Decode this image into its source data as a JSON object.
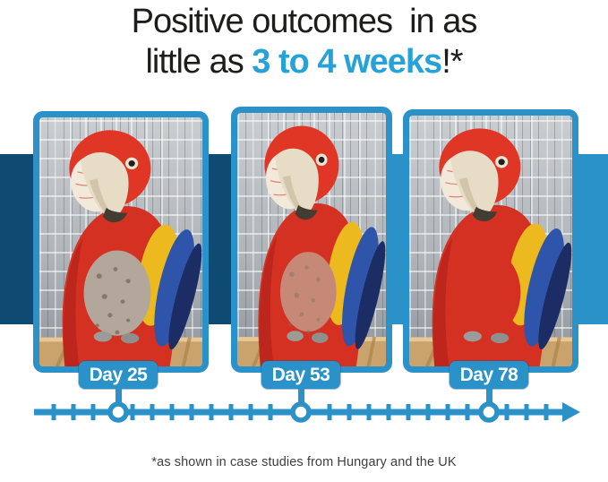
{
  "headline": {
    "line1": "Positive outcomes  in as",
    "line2_prefix": "little as ",
    "line2_highlight": "3 to 4 weeks",
    "line2_suffix": "!*"
  },
  "photos": [
    {
      "label": "Day 25",
      "description": "scarlet macaw in wire cage with plucked, bare chest patch"
    },
    {
      "label": "Day 53",
      "description": "scarlet macaw in wire cage with chest feathers partially regrown"
    },
    {
      "label": "Day 78",
      "description": "scarlet macaw in wire cage with full red plumage"
    }
  ],
  "timeline": {
    "markers": [
      "Day 25",
      "Day 53",
      "Day 78"
    ]
  },
  "footnote": "*as shown in case studies from Hungary and the UK",
  "colors": {
    "accent_blue": "#2a92c8",
    "band_navy": "#0e4a72",
    "highlight_cyan": "#25a3d9",
    "headline_ink": "#1d1d1b"
  }
}
